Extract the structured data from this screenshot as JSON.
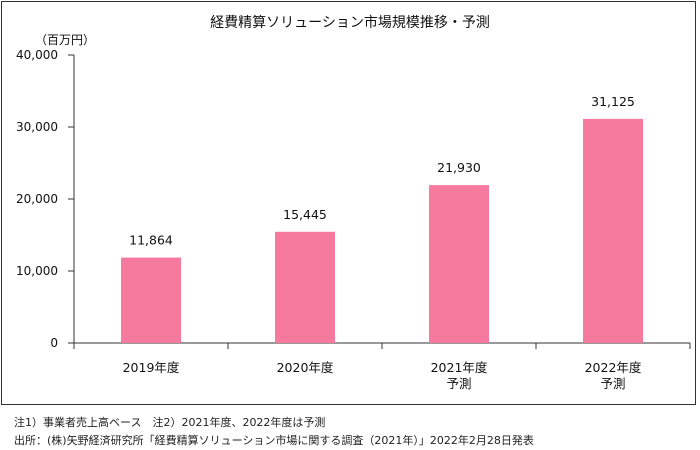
{
  "chart_data": {
    "type": "bar",
    "title": "経費精算ソリューション市場規模推移・予測",
    "ylabel": "（百万円）",
    "xlabel": "",
    "categories": [
      [
        "2019年度"
      ],
      [
        "2020年度"
      ],
      [
        "2021年度",
        "予測"
      ],
      [
        "2022年度",
        "予測"
      ]
    ],
    "values": [
      11864,
      15445,
      21930,
      31125
    ],
    "value_labels": [
      "11,864",
      "15,445",
      "21,930",
      "31,125"
    ],
    "ylim": [
      0,
      40000
    ],
    "yticks": [
      0,
      10000,
      20000,
      30000,
      40000
    ],
    "ytick_labels": [
      "0",
      "10,000",
      "20,000",
      "30,000",
      "40,000"
    ],
    "grid": false,
    "bar_color": "#F57A9E"
  },
  "notes": {
    "note1": "注1）事業者売上高ベース　注2）2021年度、2022年度は予測",
    "source": "出所：(株)矢野経済研究所「経費精算ソリューション市場に関する調査（2021年）」2022年2月28日発表"
  }
}
